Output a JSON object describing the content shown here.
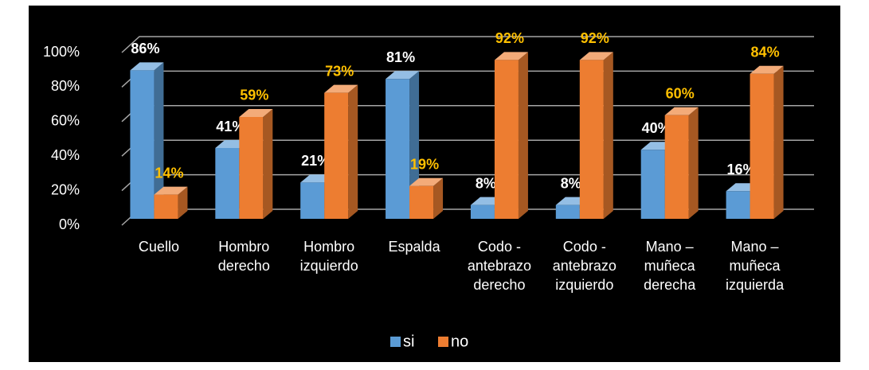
{
  "chart_data": {
    "type": "bar3d",
    "categories": [
      "Cuello",
      "Hombro derecho",
      "Hombro izquierdo",
      "Espalda",
      "Codo - antebrazo derecho",
      "Codo - antebrazo izquierdo",
      "Mano – muñeca derecha",
      "Mano – muñeca izquierda"
    ],
    "series": [
      {
        "name": "si",
        "color": "#5b9bd5",
        "label_color": "#ffffff",
        "values": [
          86,
          41,
          21,
          81,
          8,
          8,
          40,
          16
        ],
        "value_labels": [
          "86%",
          "41%",
          "21%",
          "81%",
          "8%",
          "8%",
          "40%",
          "16%"
        ]
      },
      {
        "name": "no",
        "color": "#ed7d31",
        "label_color": "#ffc000",
        "values": [
          14,
          59,
          73,
          19,
          92,
          92,
          60,
          84
        ],
        "value_labels": [
          "14%",
          "59%",
          "73%",
          "19%",
          "92%",
          "92%",
          "60%",
          "84%"
        ]
      }
    ],
    "ylim": [
      0,
      100
    ],
    "yticks": [
      {
        "value": 0,
        "label": "0%"
      },
      {
        "value": 20,
        "label": "20%"
      },
      {
        "value": 40,
        "label": "40%"
      },
      {
        "value": 60,
        "label": "60%"
      },
      {
        "value": 80,
        "label": "80%"
      },
      {
        "value": 100,
        "label": "100%"
      }
    ],
    "grid": true,
    "legend": "bottom"
  }
}
